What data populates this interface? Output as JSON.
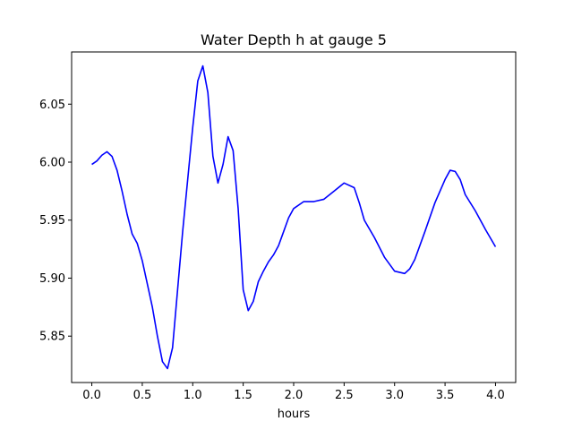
{
  "chart_data": {
    "type": "line",
    "title": "Water Depth h at gauge 5",
    "xlabel": "hours",
    "ylabel": "",
    "xlim": [
      -0.2,
      4.2
    ],
    "ylim": [
      5.81,
      6.095
    ],
    "x_ticks": [
      0.0,
      0.5,
      1.0,
      1.5,
      2.0,
      2.5,
      3.0,
      3.5,
      4.0
    ],
    "x_tick_labels": [
      "0.0",
      "0.5",
      "1.0",
      "1.5",
      "2.0",
      "2.5",
      "3.0",
      "3.5",
      "4.0"
    ],
    "y_ticks": [
      5.85,
      5.9,
      5.95,
      6.0,
      6.05
    ],
    "y_tick_labels": [
      "5.85",
      "5.90",
      "5.95",
      "6.00",
      "6.05"
    ],
    "grid": false,
    "legend": "none",
    "line_color": "#0000ff",
    "series": [
      {
        "x": [
          0.0,
          0.05,
          0.1,
          0.15,
          0.2,
          0.25,
          0.3,
          0.35,
          0.4,
          0.45,
          0.5,
          0.55,
          0.6,
          0.65,
          0.7,
          0.75,
          0.8,
          0.85,
          0.9,
          0.95,
          1.0,
          1.05,
          1.1,
          1.15,
          1.2,
          1.25,
          1.3,
          1.35,
          1.4,
          1.45,
          1.5,
          1.55,
          1.6,
          1.65,
          1.7,
          1.75,
          1.8,
          1.85,
          1.9,
          1.95,
          2.0,
          2.1,
          2.2,
          2.3,
          2.4,
          2.5,
          2.6,
          2.65,
          2.7,
          2.8,
          2.9,
          3.0,
          3.1,
          3.15,
          3.2,
          3.3,
          3.4,
          3.5,
          3.55,
          3.6,
          3.65,
          3.7,
          3.8,
          3.9,
          4.0
        ],
        "y": [
          5.998,
          6.001,
          6.006,
          6.009,
          6.005,
          5.993,
          5.975,
          5.955,
          5.938,
          5.93,
          5.915,
          5.895,
          5.875,
          5.85,
          5.828,
          5.822,
          5.84,
          5.89,
          5.94,
          5.985,
          6.03,
          6.07,
          6.083,
          6.06,
          6.005,
          5.982,
          5.998,
          6.022,
          6.01,
          5.96,
          5.89,
          5.872,
          5.88,
          5.897,
          5.906,
          5.914,
          5.92,
          5.928,
          5.94,
          5.952,
          5.96,
          5.966,
          5.966,
          5.968,
          5.975,
          5.982,
          5.978,
          5.965,
          5.95,
          5.935,
          5.918,
          5.906,
          5.904,
          5.908,
          5.916,
          5.94,
          5.965,
          5.985,
          5.993,
          5.992,
          5.985,
          5.972,
          5.958,
          5.942,
          5.927
        ]
      }
    ]
  }
}
